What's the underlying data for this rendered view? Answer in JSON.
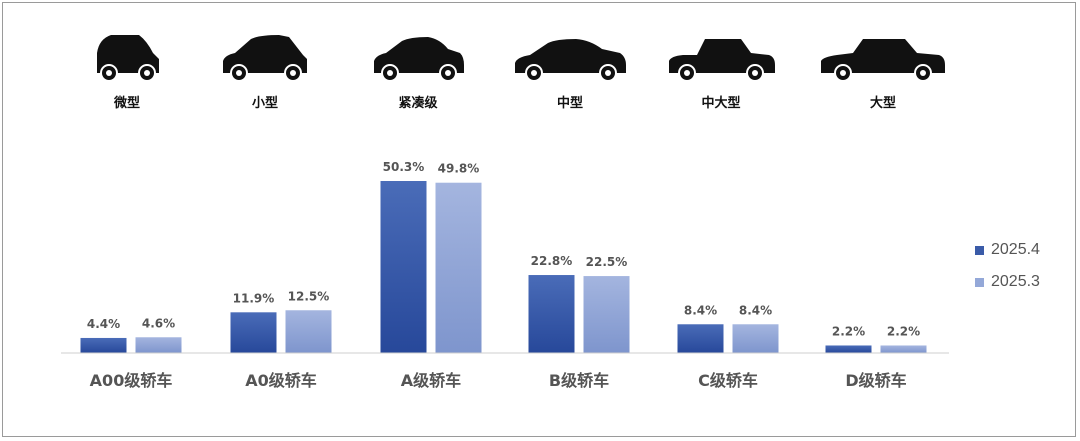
{
  "car_types": [
    {
      "label": "微型",
      "icon": "micro-car-icon"
    },
    {
      "label": "小型",
      "icon": "hatchback-car-icon"
    },
    {
      "label": "紧凑级",
      "icon": "compact-sedan-icon"
    },
    {
      "label": "中型",
      "icon": "midsize-sedan-icon"
    },
    {
      "label": "中大型",
      "icon": "large-sedan-icon"
    },
    {
      "label": "大型",
      "icon": "full-size-sedan-icon"
    }
  ],
  "colors": {
    "series_2025_4": "#3a5ba8",
    "series_2025_3": "#94a8d8",
    "axis": "#cfcfcf",
    "label_text": "#555555",
    "car_icon": "#111111"
  },
  "chart_data": {
    "type": "bar",
    "categories": [
      "A00级轿车",
      "A0级轿车",
      "A级轿车",
      "B级轿车",
      "C级轿车",
      "D级轿车"
    ],
    "series": [
      {
        "name": "2025.4",
        "values": [
          4.4,
          11.9,
          50.3,
          22.8,
          8.4,
          2.2
        ],
        "labels": [
          "4.4%",
          "11.9%",
          "50.3%",
          "22.8%",
          "8.4%",
          "2.2%"
        ]
      },
      {
        "name": "2025.3",
        "values": [
          4.6,
          12.5,
          49.8,
          22.5,
          8.4,
          2.2
        ],
        "labels": [
          "4.6%",
          "12.5%",
          "49.8%",
          "22.5%",
          "8.4%",
          "2.2%"
        ]
      }
    ],
    "ylim": [
      0,
      50.3
    ],
    "grid": false,
    "legend_position": "right"
  }
}
